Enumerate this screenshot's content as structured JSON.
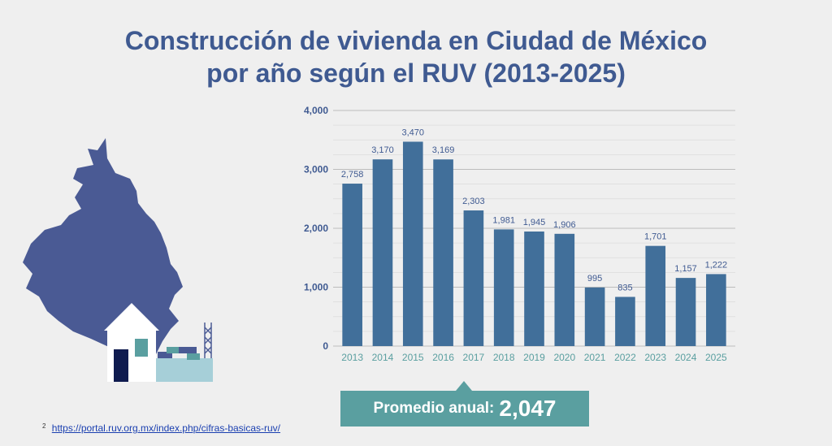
{
  "title_line1": "Construcción de vivienda en Ciudad de México",
  "title_line2": "por año según el RUV (2013-2025)",
  "chart_data": {
    "type": "bar",
    "categories": [
      "2013",
      "2014",
      "2015",
      "2016",
      "2017",
      "2018",
      "2019",
      "2020",
      "2021",
      "2022",
      "2023",
      "2024",
      "2025"
    ],
    "values": [
      2758,
      3170,
      3470,
      3169,
      2303,
      1981,
      1945,
      1906,
      995,
      835,
      1701,
      1157,
      1222
    ],
    "value_labels": [
      "2,758",
      "3,170",
      "3,470",
      "3,169",
      "2,303",
      "1,981",
      "1,945",
      "1,906",
      "995",
      "835",
      "1,701",
      "1,157",
      "1,222"
    ],
    "y_ticks": [
      0,
      1000,
      2000,
      3000,
      4000
    ],
    "y_tick_labels": [
      "0",
      "1,000",
      "2,000",
      "3,000",
      "4,000"
    ],
    "ylim": [
      0,
      4000
    ],
    "grid": true,
    "title": "",
    "xlabel": "",
    "ylabel": "",
    "bar_color": "#416f9a"
  },
  "average": {
    "label": "Promedio anual:",
    "value": "2,047"
  },
  "footnote": {
    "marker": "2",
    "link": "https://portal.ruv.org.mx/index.php/cifras-basicas-ruv/"
  },
  "colors": {
    "title": "#3f5a91",
    "map": "#4a5a94",
    "teal": "#5a9fa0"
  }
}
